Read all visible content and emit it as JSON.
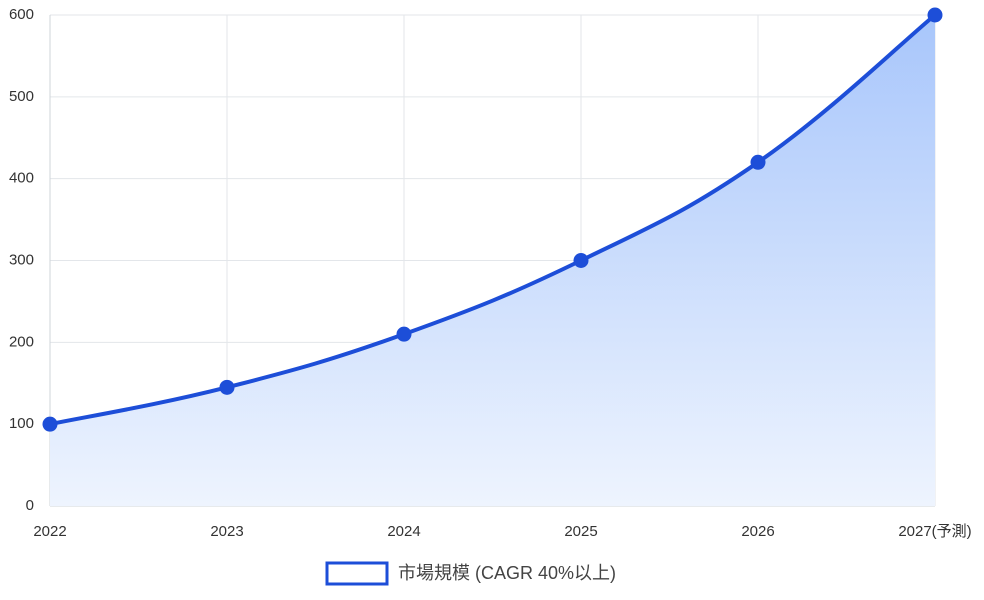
{
  "chart_data": {
    "type": "line",
    "categories": [
      "2022",
      "2023",
      "2024",
      "2025",
      "2026",
      "2027(予測)"
    ],
    "series": [
      {
        "name": "市場規模 (CAGR 40%以上)",
        "color": "#1d4ed8",
        "values": [
          100,
          145,
          210,
          300,
          420,
          600
        ]
      }
    ],
    "area": true,
    "area_colors": [
      "#a8c6fb",
      "#eef4fe"
    ],
    "ylim": [
      0,
      600
    ],
    "yticks": [
      0,
      100,
      200,
      300,
      400,
      500,
      600
    ],
    "grid": true,
    "legend": "bottom"
  }
}
